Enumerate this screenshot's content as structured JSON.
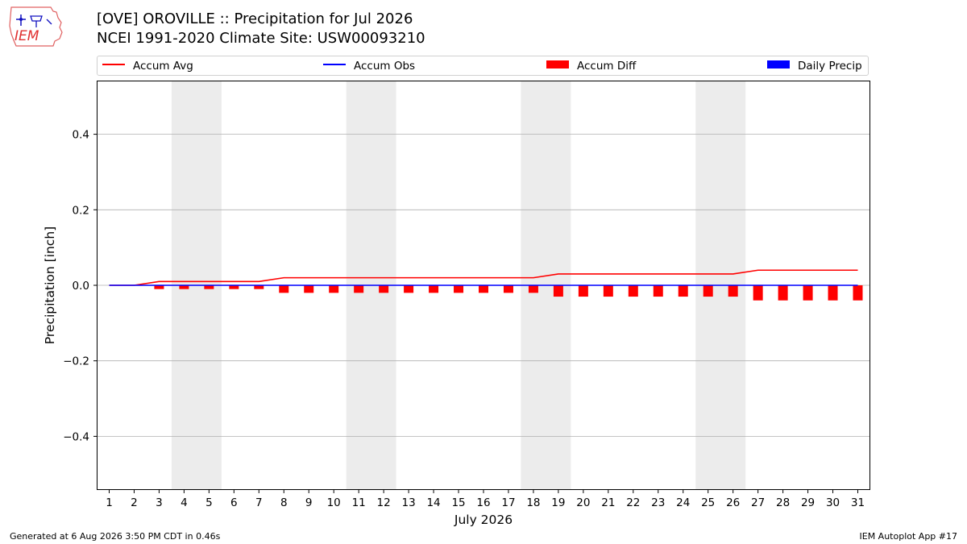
{
  "header": {
    "title_line1": "[OVE] OROVILLE :: Precipitation for Jul 2026",
    "title_line2": "NCEI 1991-2020 Climate Site: USW00093210",
    "logo_text": "IEM"
  },
  "footer": {
    "generated": "Generated at 6 Aug 2026 3:50 PM CDT in 0.46s",
    "app": "IEM Autoplot App #17"
  },
  "chart_data": {
    "type": "line",
    "title": "[OVE] OROVILLE :: Precipitation for Jul 2026",
    "subtitle": "NCEI 1991-2020 Climate Site: USW00093210",
    "xlabel": "July 2026",
    "ylabel": "Precipitation [inch]",
    "x": [
      1,
      2,
      3,
      4,
      5,
      6,
      7,
      8,
      9,
      10,
      11,
      12,
      13,
      14,
      15,
      16,
      17,
      18,
      19,
      20,
      21,
      22,
      23,
      24,
      25,
      26,
      27,
      28,
      29,
      30,
      31
    ],
    "ylim": [
      -0.54,
      0.54
    ],
    "yticks": [
      0.4,
      0.2,
      0.0,
      -0.2,
      -0.4
    ],
    "ytick_labels": [
      "0.4",
      "0.2",
      "0.0",
      "−0.2",
      "−0.4"
    ],
    "grid": true,
    "legend_position": "top",
    "weekend_shading": [
      [
        3.5,
        5.5
      ],
      [
        10.5,
        12.5
      ],
      [
        17.5,
        19.5
      ],
      [
        24.5,
        26.5
      ]
    ],
    "series": [
      {
        "name": "Accum Avg",
        "kind": "line",
        "color": "#ff0000",
        "values": [
          0,
          0,
          0.01,
          0.01,
          0.01,
          0.01,
          0.01,
          0.02,
          0.02,
          0.02,
          0.02,
          0.02,
          0.02,
          0.02,
          0.02,
          0.02,
          0.02,
          0.02,
          0.03,
          0.03,
          0.03,
          0.03,
          0.03,
          0.03,
          0.03,
          0.03,
          0.04,
          0.04,
          0.04,
          0.04,
          0.04
        ]
      },
      {
        "name": "Accum Obs",
        "kind": "line",
        "color": "#0000ff",
        "values": [
          0,
          0,
          0,
          0,
          0,
          0,
          0,
          0,
          0,
          0,
          0,
          0,
          0,
          0,
          0,
          0,
          0,
          0,
          0,
          0,
          0,
          0,
          0,
          0,
          0,
          0,
          0,
          0,
          0,
          0,
          0
        ]
      },
      {
        "name": "Accum Diff",
        "kind": "bar",
        "color": "#ff0000",
        "values": [
          0,
          0,
          -0.01,
          -0.01,
          -0.01,
          -0.01,
          -0.01,
          -0.02,
          -0.02,
          -0.02,
          -0.02,
          -0.02,
          -0.02,
          -0.02,
          -0.02,
          -0.02,
          -0.02,
          -0.02,
          -0.03,
          -0.03,
          -0.03,
          -0.03,
          -0.03,
          -0.03,
          -0.03,
          -0.03,
          -0.04,
          -0.04,
          -0.04,
          -0.04,
          -0.04
        ]
      },
      {
        "name": "Daily Precip",
        "kind": "bar",
        "color": "#0000ff",
        "values": [
          0,
          0,
          0,
          0,
          0,
          0,
          0,
          0,
          0,
          0,
          0,
          0,
          0,
          0,
          0,
          0,
          0,
          0,
          0,
          0,
          0,
          0,
          0,
          0,
          0,
          0,
          0,
          0,
          0,
          0,
          0
        ]
      }
    ]
  }
}
